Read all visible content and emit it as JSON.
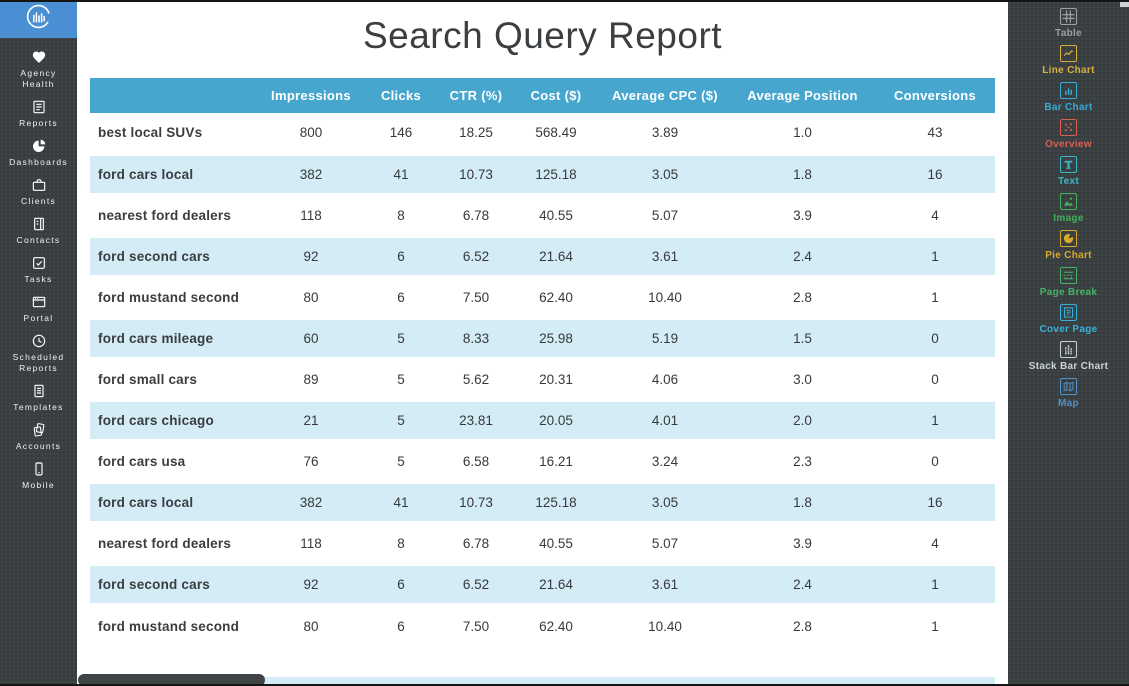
{
  "report": {
    "title": "Search Query Report"
  },
  "left_sidebar": {
    "items": [
      {
        "icon": "heart-icon",
        "label": "Agency Health"
      },
      {
        "icon": "report-icon",
        "label": "Reports"
      },
      {
        "icon": "pie-icon",
        "label": "Dashboards"
      },
      {
        "icon": "briefcase-icon",
        "label": "Clients"
      },
      {
        "icon": "contacts-icon",
        "label": "Contacts"
      },
      {
        "icon": "checkbox-icon",
        "label": "Tasks"
      },
      {
        "icon": "browser-icon",
        "label": "Portal"
      },
      {
        "icon": "clock-icon",
        "label": "Scheduled Reports"
      },
      {
        "icon": "document-icon",
        "label": "Templates"
      },
      {
        "icon": "stack-icon",
        "label": "Accounts"
      },
      {
        "icon": "mobile-icon",
        "label": "Mobile"
      }
    ]
  },
  "table": {
    "columns": [
      "",
      "Impressions",
      "Clicks",
      "CTR (%)",
      "Cost ($)",
      "Average CPC ($)",
      "Average Position",
      "Conversions"
    ],
    "rows": [
      [
        "best local SUVs",
        "800",
        "146",
        "18.25",
        "568.49",
        "3.89",
        "1.0",
        "43"
      ],
      [
        "ford cars local",
        "382",
        "41",
        "10.73",
        "125.18",
        "3.05",
        "1.8",
        "16"
      ],
      [
        "nearest ford dealers",
        "118",
        "8",
        "6.78",
        "40.55",
        "5.07",
        "3.9",
        "4"
      ],
      [
        "ford second cars",
        "92",
        "6",
        "6.52",
        "21.64",
        "3.61",
        "2.4",
        "1"
      ],
      [
        "ford mustand second",
        "80",
        "6",
        "7.50",
        "62.40",
        "10.40",
        "2.8",
        "1"
      ],
      [
        "ford cars mileage",
        "60",
        "5",
        "8.33",
        "25.98",
        "5.19",
        "1.5",
        "0"
      ],
      [
        "ford small cars",
        "89",
        "5",
        "5.62",
        "20.31",
        "4.06",
        "3.0",
        "0"
      ],
      [
        "ford cars chicago",
        "21",
        "5",
        "23.81",
        "20.05",
        "4.01",
        "2.0",
        "1"
      ],
      [
        "ford cars usa",
        "76",
        "5",
        "6.58",
        "16.21",
        "3.24",
        "2.3",
        "0"
      ],
      [
        "ford cars local",
        "382",
        "41",
        "10.73",
        "125.18",
        "3.05",
        "1.8",
        "16"
      ],
      [
        "nearest ford dealers",
        "118",
        "8",
        "6.78",
        "40.55",
        "5.07",
        "3.9",
        "4"
      ],
      [
        "ford second cars",
        "92",
        "6",
        "6.52",
        "21.64",
        "3.61",
        "2.4",
        "1"
      ],
      [
        "ford mustand second",
        "80",
        "6",
        "7.50",
        "62.40",
        "10.40",
        "2.8",
        "1"
      ]
    ]
  },
  "right_sidebar": {
    "widgets": [
      {
        "icon": "table-widget-icon",
        "label": "Table",
        "color": "#9aa0a4"
      },
      {
        "icon": "line-chart-icon",
        "label": "Line Chart",
        "color": "#d9b23d"
      },
      {
        "icon": "bar-chart-icon",
        "label": "Bar Chart",
        "color": "#35acd6"
      },
      {
        "icon": "overview-icon",
        "label": "Overview",
        "color": "#d85f52"
      },
      {
        "icon": "text-icon",
        "label": "Text",
        "color": "#39b7c4"
      },
      {
        "icon": "image-icon",
        "label": "Image",
        "color": "#43b05c"
      },
      {
        "icon": "pie-chart-icon",
        "label": "Pie Chart",
        "color": "#d9a928"
      },
      {
        "icon": "page-break-icon",
        "label": "Page Break",
        "color": "#44b566"
      },
      {
        "icon": "cover-page-icon",
        "label": "Cover Page",
        "color": "#38b2d9"
      },
      {
        "icon": "stack-bar-icon",
        "label": "Stack Bar Chart",
        "color": "#ccd3d7"
      },
      {
        "icon": "map-icon",
        "label": "Map",
        "color": "#5591c5"
      }
    ]
  },
  "colors": {
    "sidebar_bg": "#383d40",
    "logo_bg": "#4a8fd3",
    "table_header_bg": "#47a6ce",
    "row_alt_bg": "#d3ecf6",
    "text_dark": "#37393b"
  }
}
